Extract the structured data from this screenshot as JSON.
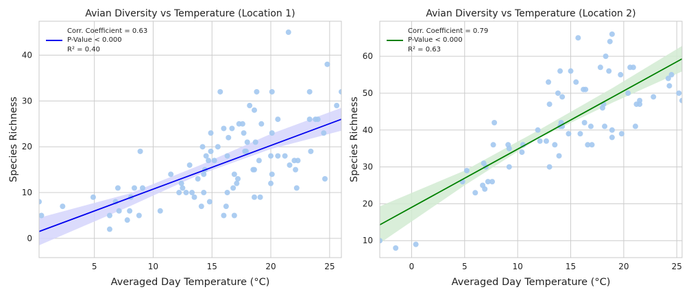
{
  "chart_data": [
    {
      "type": "scatter",
      "title": "Avian Diversity vs Temperature (Location 1)",
      "xlabel": "Averaged Day Temperature (°C)",
      "ylabel": "Species Richness",
      "xlim": [
        0.3,
        26
      ],
      "ylim": [
        -4.2,
        47.4
      ],
      "xticks": [
        5,
        10,
        15,
        20,
        25
      ],
      "yticks": [
        0,
        10,
        20,
        30,
        40
      ],
      "grid": true,
      "point_color": "#a3c8f0",
      "fit_color": "#0000ee",
      "band_color": "#d5d5fb",
      "legend_position": "top-left",
      "legend": {
        "line1": "Corr. Coefficient = 0.63",
        "line2": "P-Value < 0.000",
        "line3": "R² = 0.40"
      },
      "fit": {
        "x": [
          0.3,
          26
        ],
        "y": [
          1.5,
          26.0
        ]
      },
      "band": {
        "x": [
          0.3,
          8,
          14,
          20,
          26
        ],
        "lower": [
          -1.5,
          7.0,
          14.0,
          19.5,
          23.5
        ],
        "upper": [
          4.5,
          9.8,
          16.0,
          22.8,
          28.5
        ]
      },
      "points": [
        [
          0.3,
          8
        ],
        [
          0.5,
          5
        ],
        [
          2.3,
          7
        ],
        [
          4.9,
          9
        ],
        [
          6.3,
          2
        ],
        [
          6.3,
          5
        ],
        [
          6.8,
          8
        ],
        [
          7.0,
          11
        ],
        [
          7.1,
          6
        ],
        [
          7.8,
          4
        ],
        [
          8.0,
          6
        ],
        [
          8.1,
          9
        ],
        [
          8.4,
          11
        ],
        [
          8.8,
          5
        ],
        [
          8.9,
          19
        ],
        [
          9.1,
          11
        ],
        [
          10.6,
          6
        ],
        [
          11.5,
          14
        ],
        [
          12.2,
          10
        ],
        [
          12.4,
          12
        ],
        [
          12.5,
          11
        ],
        [
          12.8,
          10
        ],
        [
          13.1,
          16
        ],
        [
          13.3,
          10
        ],
        [
          13.5,
          9
        ],
        [
          13.8,
          13
        ],
        [
          14.1,
          7
        ],
        [
          14.2,
          20
        ],
        [
          14.3,
          10
        ],
        [
          14.3,
          14
        ],
        [
          14.4,
          15
        ],
        [
          14.5,
          18
        ],
        [
          14.7,
          17
        ],
        [
          14.8,
          8
        ],
        [
          14.9,
          23
        ],
        [
          14.9,
          19
        ],
        [
          15.2,
          17
        ],
        [
          15.5,
          20
        ],
        [
          15.7,
          32
        ],
        [
          16.0,
          24
        ],
        [
          16.0,
          5
        ],
        [
          16.2,
          7
        ],
        [
          16.3,
          10
        ],
        [
          16.3,
          18
        ],
        [
          16.4,
          22
        ],
        [
          16.7,
          24
        ],
        [
          16.8,
          11
        ],
        [
          16.9,
          5
        ],
        [
          16.9,
          14
        ],
        [
          17.1,
          12
        ],
        [
          17.2,
          13
        ],
        [
          17.3,
          25
        ],
        [
          17.6,
          25
        ],
        [
          17.7,
          23
        ],
        [
          17.8,
          19
        ],
        [
          17.9,
          19
        ],
        [
          18.0,
          21
        ],
        [
          18.2,
          29
        ],
        [
          18.5,
          15
        ],
        [
          18.6,
          15
        ],
        [
          18.6,
          28
        ],
        [
          18.6,
          9
        ],
        [
          18.7,
          21
        ],
        [
          18.8,
          32
        ],
        [
          19.0,
          17
        ],
        [
          19.1,
          9
        ],
        [
          19.2,
          25
        ],
        [
          20.0,
          12
        ],
        [
          20.0,
          18
        ],
        [
          20.1,
          32
        ],
        [
          20.1,
          14
        ],
        [
          20.1,
          23
        ],
        [
          20.6,
          26
        ],
        [
          20.6,
          18
        ],
        [
          21.2,
          18
        ],
        [
          21.5,
          45
        ],
        [
          21.6,
          16
        ],
        [
          22.0,
          17
        ],
        [
          22.1,
          15
        ],
        [
          22.2,
          11
        ],
        [
          22.3,
          17
        ],
        [
          23.3,
          32
        ],
        [
          23.3,
          26
        ],
        [
          23.4,
          19
        ],
        [
          23.8,
          26
        ],
        [
          24.0,
          26
        ],
        [
          24.5,
          23
        ],
        [
          24.6,
          13
        ],
        [
          24.8,
          38
        ],
        [
          25.6,
          29
        ],
        [
          26.0,
          32
        ]
      ]
    },
    {
      "type": "scatter",
      "title": "Avian Diversity vs Temperature (Location 2)",
      "xlabel": "Averaged Day Temperature (°C)",
      "ylabel": "Species Richness",
      "xlim": [
        -3,
        25.5
      ],
      "ylim": [
        5.4,
        69.5
      ],
      "xticks": [
        0,
        5,
        10,
        15,
        20,
        25
      ],
      "yticks": [
        10,
        20,
        30,
        40,
        50,
        60
      ],
      "grid": true,
      "point_color": "#a3c8f0",
      "fit_color": "#008000",
      "band_color": "#d2ebd2",
      "legend_position": "top-left",
      "legend": {
        "line1": "Corr. Coefficient = 0.79",
        "line2": "P-Value < 0.000",
        "line3": "R² = 0.63"
      },
      "fit": {
        "x": [
          -3,
          25.5
        ],
        "y": [
          14.3,
          59.3
        ]
      },
      "band": {
        "x": [
          -3,
          5,
          12,
          19,
          25.5
        ],
        "lower": [
          9.3,
          25.0,
          37.8,
          47.5,
          55.9
        ],
        "upper": [
          19.3,
          29.0,
          40.0,
          51.5,
          62.8
        ]
      },
      "points": [
        [
          -3,
          10
        ],
        [
          -1.5,
          8
        ],
        [
          0.4,
          9
        ],
        [
          4.8,
          26
        ],
        [
          5.2,
          29
        ],
        [
          6.0,
          23
        ],
        [
          6.7,
          25
        ],
        [
          6.8,
          31
        ],
        [
          6.9,
          24
        ],
        [
          7.0,
          30
        ],
        [
          7.2,
          26
        ],
        [
          7.6,
          26
        ],
        [
          7.7,
          36
        ],
        [
          7.8,
          42
        ],
        [
          9.1,
          36
        ],
        [
          9.2,
          35
        ],
        [
          9.2,
          30
        ],
        [
          10.4,
          34
        ],
        [
          10.5,
          36
        ],
        [
          11.9,
          40
        ],
        [
          12.1,
          37
        ],
        [
          12.7,
          37
        ],
        [
          12.9,
          53
        ],
        [
          13.0,
          30
        ],
        [
          13.0,
          47
        ],
        [
          13.5,
          36
        ],
        [
          13.8,
          50
        ],
        [
          13.9,
          33
        ],
        [
          14.0,
          56
        ],
        [
          14.0,
          41
        ],
        [
          14.1,
          42
        ],
        [
          14.2,
          49
        ],
        [
          14.2,
          41
        ],
        [
          14.8,
          39
        ],
        [
          15.0,
          56
        ],
        [
          15.5,
          53
        ],
        [
          15.7,
          65
        ],
        [
          15.9,
          39
        ],
        [
          16.2,
          51
        ],
        [
          16.3,
          42
        ],
        [
          16.4,
          51
        ],
        [
          16.6,
          36
        ],
        [
          16.9,
          41
        ],
        [
          17.0,
          36
        ],
        [
          17.8,
          57
        ],
        [
          18.0,
          46
        ],
        [
          18.1,
          47
        ],
        [
          18.2,
          41
        ],
        [
          18.3,
          60
        ],
        [
          18.6,
          56
        ],
        [
          18.7,
          64
        ],
        [
          18.9,
          38
        ],
        [
          18.9,
          66
        ],
        [
          18.9,
          40
        ],
        [
          19.7,
          55
        ],
        [
          19.8,
          39
        ],
        [
          20.4,
          50
        ],
        [
          20.6,
          57
        ],
        [
          20.9,
          57
        ],
        [
          21.1,
          41
        ],
        [
          21.2,
          47
        ],
        [
          21.5,
          48
        ],
        [
          21.5,
          47
        ],
        [
          22.8,
          49
        ],
        [
          24.2,
          54
        ],
        [
          24.3,
          52
        ],
        [
          24.5,
          55
        ],
        [
          25.2,
          50
        ],
        [
          25.5,
          48
        ]
      ]
    }
  ]
}
